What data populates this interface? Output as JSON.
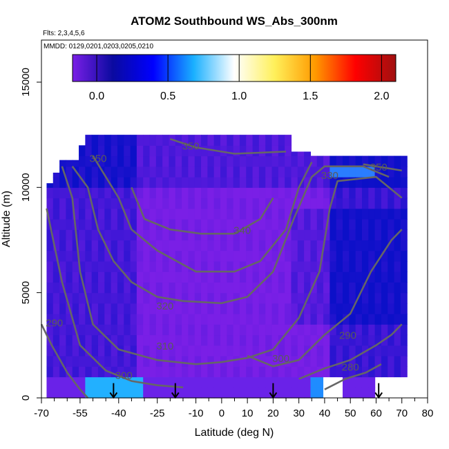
{
  "chart_data": {
    "type": "heatmap",
    "title": "ATOM2 Southbound WS_Abs_300nm",
    "flights_note": "Flts: 2,3,4,5,6",
    "dates_note": "MMDD: 0129,0201,0203,0205,0210",
    "xlabel": "Latitude (deg N)",
    "ylabel": "Altitude (m)",
    "xlim": [
      -70,
      80
    ],
    "ylim": [
      0,
      17000
    ],
    "x_tick_labels": [
      "-70",
      "-55",
      "-40",
      "-25",
      "-10",
      "0",
      "10",
      "20",
      "30",
      "40",
      "50",
      "60",
      "70",
      "80"
    ],
    "x_tick_values": [
      -70,
      -55,
      -40,
      -25,
      -10,
      0,
      10,
      20,
      30,
      40,
      50,
      60,
      70,
      80
    ],
    "y_tick_labels": [
      "0",
      "5000",
      "10000",
      "15000"
    ],
    "y_tick_values": [
      0,
      5000,
      10000,
      15000
    ],
    "colorbar": {
      "range": [
        -0.17,
        2.1
      ],
      "tick_labels": [
        "0.0",
        "0.5",
        "1.0",
        "1.5",
        "2.0"
      ],
      "tick_values": [
        0,
        0.5,
        1.0,
        1.5,
        2.0
      ],
      "colors": [
        "#7a1fe6",
        "#0a0aa0",
        "#0000ff",
        "#1ab0ff",
        "#ffffff",
        "#fff05a",
        "#ff9a00",
        "#ff0000",
        "#a01010"
      ]
    },
    "contours": [
      {
        "level": "350",
        "label_x": -48,
        "label_y": 11200
      },
      {
        "level": "350",
        "label_x": -12,
        "label_y": 11800
      },
      {
        "level": "350",
        "label_x": 61,
        "label_y": 10800
      },
      {
        "level": "340",
        "label_x": 8,
        "label_y": 7800
      },
      {
        "level": "330",
        "label_x": 42,
        "label_y": 10400
      },
      {
        "level": "320",
        "label_x": -22,
        "label_y": 4200
      },
      {
        "level": "310",
        "label_x": -22,
        "label_y": 2300
      },
      {
        "level": "300",
        "label_x": -38,
        "label_y": 900
      },
      {
        "level": "300",
        "label_x": 23,
        "label_y": 1700
      },
      {
        "level": "290",
        "label_x": -65,
        "label_y": 3400
      },
      {
        "level": "290",
        "label_x": 49,
        "label_y": 2800
      },
      {
        "level": "280",
        "label_x": 50,
        "label_y": 1300
      }
    ],
    "flight_arrows_lat": [
      -42,
      -18,
      20,
      61
    ],
    "grid": false
  }
}
